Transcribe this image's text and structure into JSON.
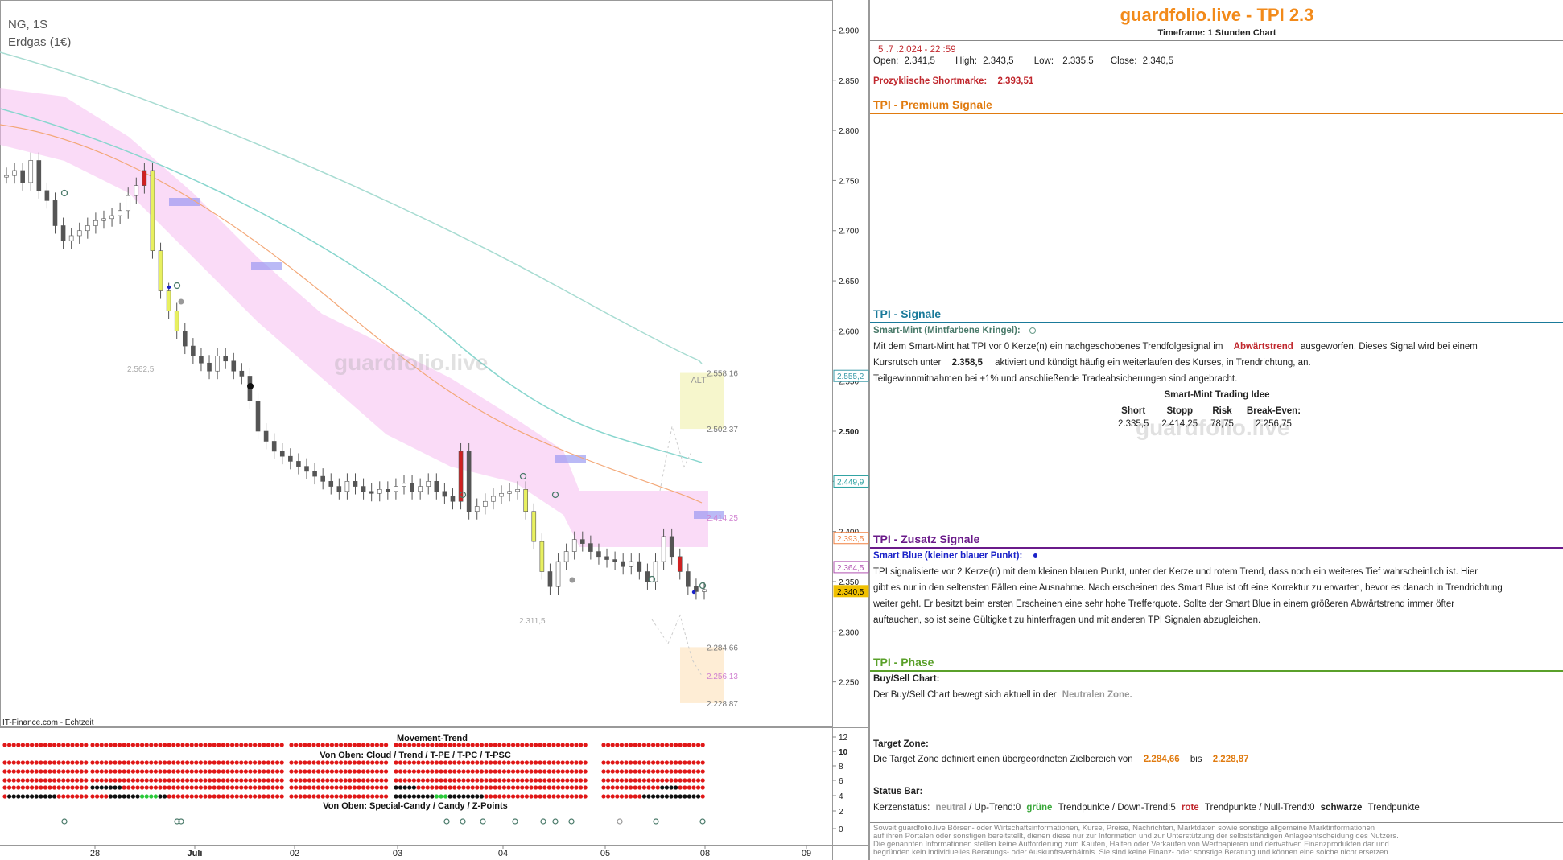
{
  "chart_header": {
    "symbol": "NG, 1S",
    "name": "Erdgas (1€)"
  },
  "watermark": "guardfolio.live",
  "source_label": "IT-Finance.com - Echtzeit",
  "price_axis": {
    "ticks": [
      "2.900",
      "2.850",
      "2.800",
      "2.750",
      "2.700",
      "2.650",
      "2.600",
      "2.550",
      "2.500",
      "2.450",
      "2.400",
      "2.350",
      "2.300",
      "2.250"
    ],
    "markers": [
      {
        "label": "2.555,2",
        "color": "#3a9aa8",
        "value": 2555.2
      },
      {
        "label": "2.449,9",
        "color": "#2aa0a0",
        "value": 2449.9
      },
      {
        "label": "2.393,5",
        "color": "#f08040",
        "value": 2393.5
      },
      {
        "label": "2.364,5",
        "color": "#b050b0",
        "value": 2364.5
      },
      {
        "label": "2.340,5",
        "color": "#f0c000",
        "value": 2340.5,
        "filled": true
      }
    ]
  },
  "time_axis": {
    "labels": [
      "28",
      "Juli",
      "02",
      "03",
      "04",
      "05",
      "08",
      "09"
    ]
  },
  "chart_annotations": {
    "alt_label": "ALT",
    "level_labels": [
      "2.558,16",
      "2.502,37",
      "2.414,25",
      "2.284,66",
      "2.256,13",
      "2.228,87"
    ],
    "left_labels": [
      "2.562,5",
      "2.311,5"
    ]
  },
  "chart_data": {
    "type": "candlestick",
    "title": "NG, 1S",
    "subtitle": "Erdgas (1€)",
    "ylim": [
      2220,
      2910
    ],
    "x_labels": [
      "28",
      "Juli",
      "02",
      "03",
      "04",
      "05",
      "08",
      "09"
    ],
    "levels": {
      "alt_zone": [
        2502.37,
        2558.16
      ],
      "target_zone": [
        2228.87,
        2284.66
      ],
      "stop": 2414.25,
      "target_mid": 2256.13
    },
    "close_series": [
      2755,
      2760,
      2748,
      2770,
      2740,
      2730,
      2705,
      2690,
      2695,
      2700,
      2705,
      2710,
      2712,
      2715,
      2720,
      2735,
      2745,
      2760,
      2680,
      2640,
      2620,
      2600,
      2585,
      2575,
      2568,
      2560,
      2575,
      2570,
      2560,
      2555,
      2530,
      2500,
      2490,
      2480,
      2475,
      2470,
      2465,
      2460,
      2455,
      2450,
      2445,
      2440,
      2450,
      2445,
      2440,
      2438,
      2442,
      2440,
      2445,
      2448,
      2440,
      2445,
      2450,
      2440,
      2435,
      2430,
      2480,
      2420,
      2425,
      2430,
      2435,
      2438,
      2440,
      2442,
      2420,
      2390,
      2360,
      2345,
      2370,
      2380,
      2392,
      2388,
      2380,
      2375,
      2372,
      2370,
      2365,
      2370,
      2360,
      2350,
      2370,
      2395,
      2375,
      2360,
      2345,
      2340,
      2342
    ]
  },
  "indicator": {
    "title": "Movement-Trend",
    "label_top": "Von Oben: Cloud / Trend / T-PE / T-PC / T-PSC",
    "label_bottom": "Von Oben: Special-Candy / Candy / Z-Points",
    "axis": [
      "12",
      "10",
      "8",
      "6",
      "4",
      "2",
      "0"
    ]
  },
  "panel": {
    "title": "guardfolio.live - TPI 2.3",
    "timeframe": "Timeframe: 1 Stunden Chart",
    "datetime": "5 .7 .2.024  - 22 :59",
    "ohlc": {
      "open_label": "Open:",
      "open": "2.341,5",
      "high_label": "High:",
      "high": "2.343,5",
      "low_label": "Low:",
      "low": "2.335,5",
      "close_label": "Close:",
      "close": "2.340,5"
    },
    "short_mark_label": "Prozyklische Shortmarke:",
    "short_mark_value": "2.393,51",
    "premium": {
      "head": "TPI - Premium Signale",
      "color": "#e07b10"
    },
    "signale": {
      "head": "TPI - Signale",
      "color": "#1a7a9a",
      "sub": "Smart-Mint (Mintfarbene Kringel):",
      "l1a": "Mit dem Smart-Mint hat TPI vor 0  Kerze(n) ein nachgeschobenes Trendfolgesignal im",
      "l1b": "Abwärtstrend",
      "l1c": "ausgeworfen. Dieses Signal wird bei einem",
      "l2a": "Kursrutsch unter",
      "l2b": "2.358,5",
      "l2c": "aktiviert und kündigt häufig ein weiterlaufen des Kurses, in Trendrichtung, an.",
      "l3": "Teilgewinnmitnahmen bei +1% und anschließende Tradeabsicherungen sind angebracht.",
      "idea_title": "Smart-Mint Trading Idee",
      "cols": [
        "Short",
        "Stopp",
        "Risk",
        "Break-Even:"
      ],
      "vals": [
        "2.335,5",
        "2.414,25",
        "78,75",
        "2.256,75"
      ]
    },
    "zusatz": {
      "head": "TPI - Zusatz Signale",
      "color": "#6a1a8a",
      "sub": "Smart Blue (kleiner blauer Punkt):",
      "lines": [
        "TPI signalisierte vor 2  Kerze(n) mit dem kleinen blauen Punkt, unter der Kerze und rotem Trend, dass noch ein weiteres Tief wahrscheinlich ist. Hier",
        "gibt es nur in den seltensten Fällen eine Ausnahme. Nach erscheinen des Smart Blue ist oft eine Korrektur zu erwarten, bevor es danach in Trendrichtung",
        " weiter geht. Er besitzt beim ersten Erscheinen eine sehr hohe Trefferquote. Sollte der Smart Blue in einem größeren Abwärtstrend immer öfter",
        "auftauchen, so ist seine Gültigkeit zu hinterfragen und mit anderen TPI Signalen abzugleichen."
      ]
    },
    "phase": {
      "head": "TPI - Phase",
      "color": "#5aa02a",
      "buy_sell_head": "Buy/Sell Chart:",
      "buy_sell_a": "Der Buy/Sell Chart bewegt sich aktuell in der",
      "buy_sell_b": "Neutralen Zone.",
      "target_head": "Target Zone:",
      "target_a": "Die Target Zone definiert einen übergeordneten Zielbereich von",
      "target_v1": "2.284,66",
      "target_mid": "bis",
      "target_v2": "2.228,87",
      "status_head": "Status Bar:",
      "status_1": "Kerzenstatus:",
      "status_2": "neutral",
      "status_3": " / Up-Trend:0",
      "status_4": "grüne",
      "status_5": "Trendpunkte  / Down-Trend:5",
      "status_6": "rote",
      "status_7": "Trendpunkte  / Null-Trend:0",
      "status_8": "schwarze",
      "status_9": "Trendpunkte"
    },
    "disclaimer": [
      "Soweit guardfolio.live Börsen- oder Wirtschaftsinformationen, Kurse, Preise, Nachrichten, Marktdaten sowie sonstige allgemeine Marktinformationen",
      "auf ihren Portalen oder sonstigen bereitstellt, dienen diese nur zur Information und zur Unterstützung der selbstständigen Anlageentscheidung des Nutzers.",
      "Die genannten Informationen stellen keine Aufforderung zum Kaufen, Halten oder Verkaufen von Wertpapieren und derivativen Finanzprodukten dar und",
      "begründen kein individuelles Beratungs- oder Auskunftsverhältnis. Sie sind keine Finanz- oder sonstige Beratung und können eine solche nicht ersetzen."
    ]
  }
}
